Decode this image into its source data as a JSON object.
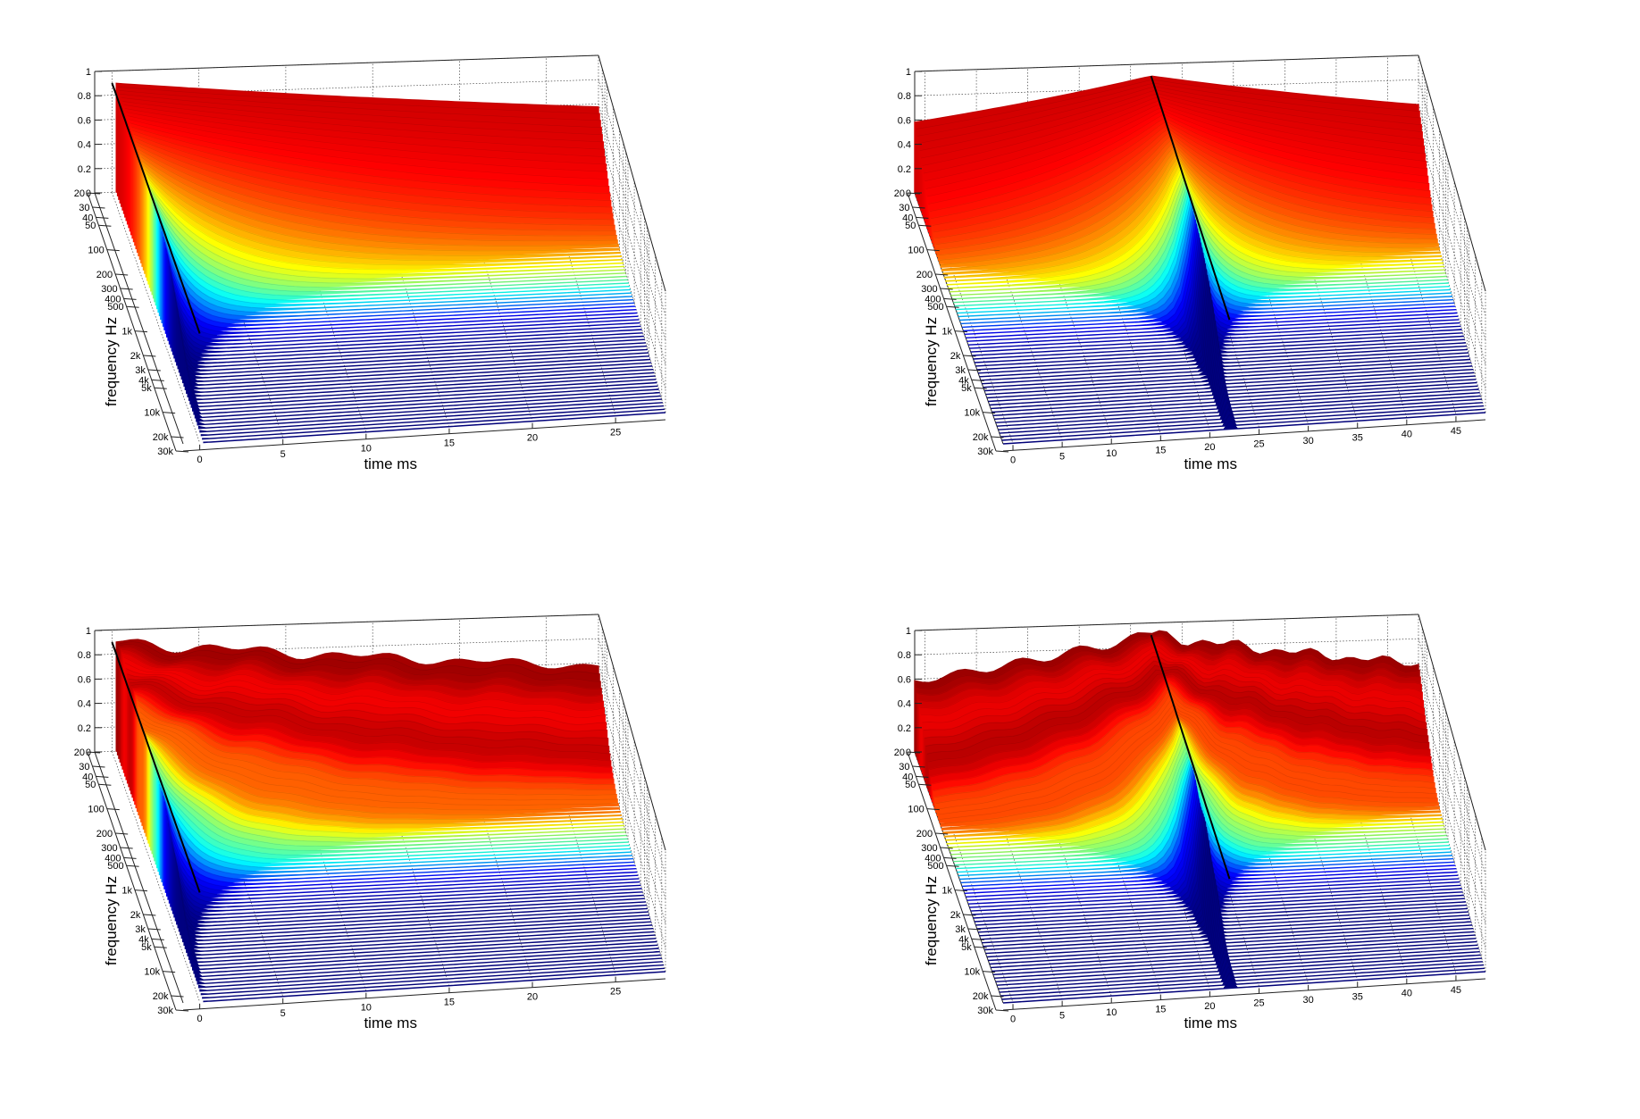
{
  "figure": {
    "panels": 4,
    "surface_colormap": "jet",
    "background": "#ffffff",
    "colormap_stops": [
      "#00007f",
      "#0000ff",
      "#00ffff",
      "#ffff00",
      "#ff0000",
      "#000000"
    ]
  },
  "chart_data": [
    {
      "type": "waterfall-3d",
      "xlabel": "time   ms",
      "ylabel": "frequency   Hz",
      "zlabel": "",
      "x_ticks": [
        "0",
        "5",
        "10",
        "15",
        "20",
        "25"
      ],
      "y_ticks": [
        "20",
        "30",
        "40",
        "50",
        "100",
        "200",
        "300",
        "400",
        "500",
        "1k",
        "2k",
        "3k",
        "4k",
        "5k",
        "10k",
        "20k",
        "30k"
      ],
      "z_ticks": [
        "0",
        "0.2",
        "0.4",
        "0.6",
        "0.8",
        "1"
      ],
      "xlim": [
        -1,
        28
      ],
      "ylim": [
        20,
        30000
      ],
      "zlim": [
        0,
        1
      ],
      "impulse_time_ms": 0,
      "peak_z": 0.9,
      "pre_ringing": false,
      "ripples": false
    },
    {
      "type": "waterfall-3d",
      "xlabel": "time   ms",
      "ylabel": "frequency   Hz",
      "zlabel": "",
      "x_ticks": [
        "0",
        "5",
        "10",
        "15",
        "20",
        "25",
        "30",
        "35",
        "40",
        "45"
      ],
      "y_ticks": [
        "20",
        "30",
        "40",
        "50",
        "100",
        "200",
        "300",
        "400",
        "500",
        "1k",
        "2k",
        "3k",
        "4k",
        "5k",
        "10k",
        "20k",
        "30k"
      ],
      "z_ticks": [
        "0",
        "0.2",
        "0.4",
        "0.6",
        "0.8",
        "1"
      ],
      "xlim": [
        -1,
        48
      ],
      "ylim": [
        20,
        30000
      ],
      "zlim": [
        0,
        1
      ],
      "impulse_time_ms": 22,
      "peak_z": 0.9,
      "pre_ringing": true,
      "ripples": false
    },
    {
      "type": "waterfall-3d",
      "xlabel": "time   ms",
      "ylabel": "frequency   Hz",
      "zlabel": "",
      "x_ticks": [
        "0",
        "5",
        "10",
        "15",
        "20",
        "25"
      ],
      "y_ticks": [
        "20",
        "30",
        "40",
        "50",
        "100",
        "200",
        "300",
        "400",
        "500",
        "1k",
        "2k",
        "3k",
        "4k",
        "5k",
        "10k",
        "20k",
        "30k"
      ],
      "z_ticks": [
        "0",
        "0.2",
        "0.4",
        "0.6",
        "0.8",
        "1"
      ],
      "xlim": [
        -1,
        28
      ],
      "ylim": [
        20,
        30000
      ],
      "zlim": [
        0,
        1
      ],
      "impulse_time_ms": 0,
      "peak_z": 0.9,
      "pre_ringing": false,
      "ripples": true
    },
    {
      "type": "waterfall-3d",
      "xlabel": "time   ms",
      "ylabel": "frequency   Hz",
      "zlabel": "",
      "x_ticks": [
        "0",
        "5",
        "10",
        "15",
        "20",
        "25",
        "30",
        "35",
        "40",
        "45"
      ],
      "y_ticks": [
        "20",
        "30",
        "40",
        "50",
        "100",
        "200",
        "300",
        "400",
        "500",
        "1k",
        "2k",
        "3k",
        "4k",
        "5k",
        "10k",
        "20k",
        "30k"
      ],
      "z_ticks": [
        "0",
        "0.2",
        "0.4",
        "0.6",
        "0.8",
        "1"
      ],
      "xlim": [
        -1,
        48
      ],
      "ylim": [
        20,
        30000
      ],
      "zlim": [
        0,
        1
      ],
      "impulse_time_ms": 22,
      "peak_z": 0.9,
      "pre_ringing": true,
      "ripples": true
    }
  ]
}
